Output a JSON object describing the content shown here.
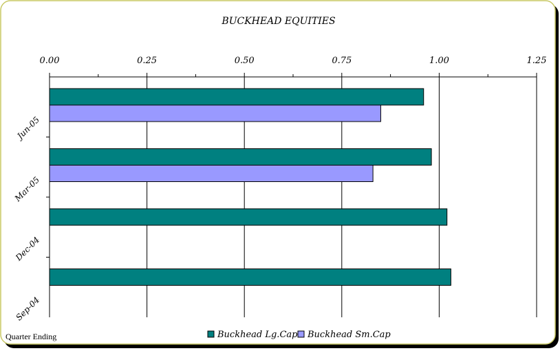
{
  "chart_data": {
    "type": "bar",
    "orientation": "horizontal",
    "title": "BUCKHEAD EQUITIES",
    "xlabel": "",
    "ylabel": "Quarter Ending",
    "xlim": [
      0,
      1.25
    ],
    "x_ticks": [
      "0.00",
      "0.25",
      "0.50",
      "0.75",
      "1.00",
      "1.25"
    ],
    "x_axis_position": "top",
    "grid": true,
    "legend_placement": "bottom",
    "categories": [
      "Jun-05",
      "Mar-05",
      "Dec-04",
      "Sep-04"
    ],
    "series": [
      {
        "name": "Buckhead Lg.Cap",
        "color": "#008080",
        "values": [
          0.96,
          0.98,
          1.02,
          1.03
        ]
      },
      {
        "name": "Buckhead Sm.Cap",
        "color": "#9999ff",
        "values": [
          0.85,
          0.83,
          null,
          null
        ]
      }
    ]
  },
  "colors": {
    "frame_border": "#c8c864",
    "frame_shadow": "#000000",
    "grid": "#000000",
    "bar_outline": "#000000"
  }
}
